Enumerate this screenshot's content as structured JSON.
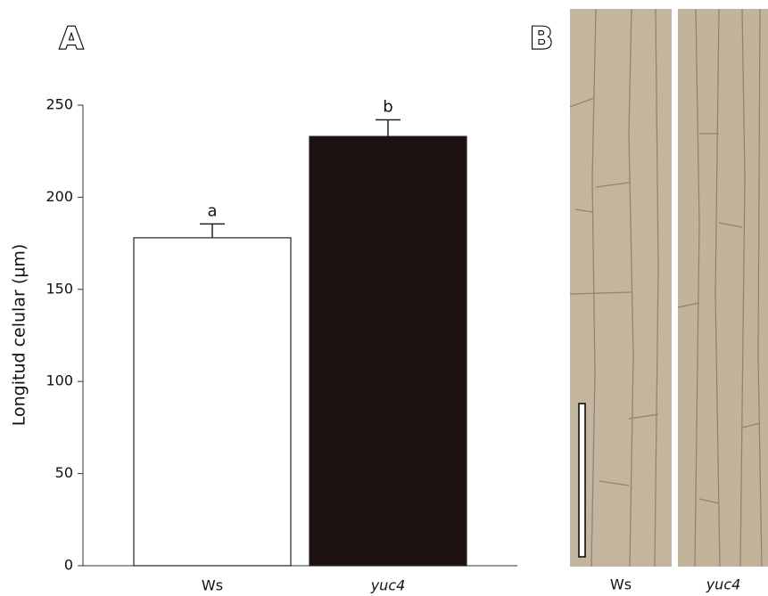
{
  "chart_data": {
    "type": "bar",
    "panel_label": "A",
    "ylabel": "Longitud celular (µm)",
    "categories": [
      "Ws",
      "yuc4"
    ],
    "values": [
      178,
      233
    ],
    "errors": [
      7.5,
      9
    ],
    "annotations": [
      "a",
      "b"
    ],
    "colors": [
      "#ffffff",
      "#1e1210"
    ],
    "ylim": [
      0,
      250
    ],
    "yticks": [
      0,
      50,
      100,
      150,
      200,
      250
    ]
  },
  "image_panel": {
    "label": "B",
    "captions": [
      "Ws",
      "yuc4"
    ]
  }
}
